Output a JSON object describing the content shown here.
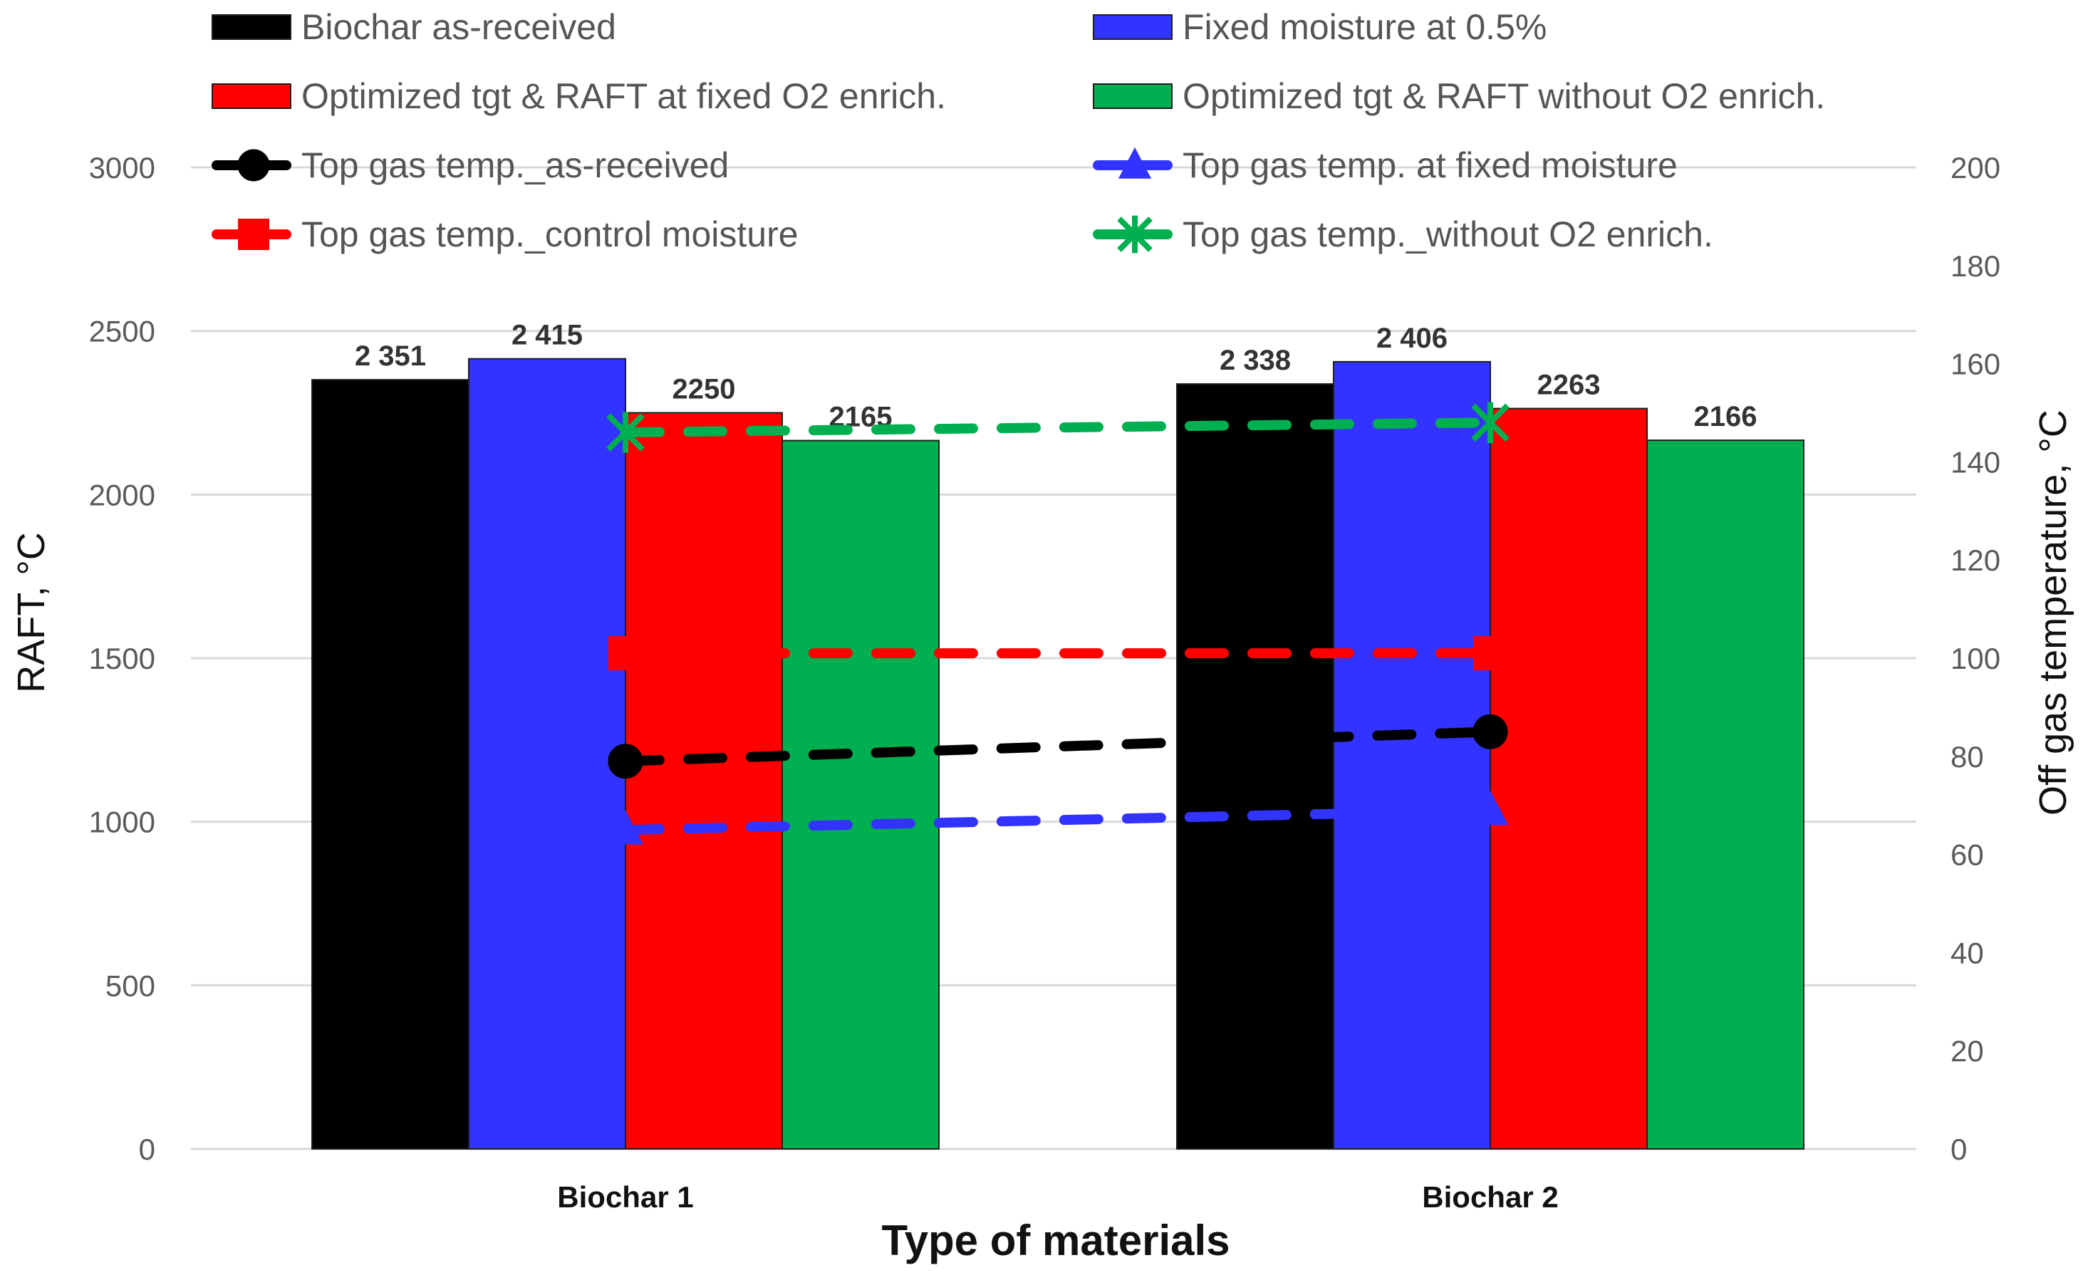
{
  "chart_data": {
    "type": "bar",
    "title": "",
    "xlabel": "Type of materials",
    "ylabel": "RAFT, °C",
    "y2label": "Off gas temperature, °C",
    "ylim": [
      0,
      3000
    ],
    "y2lim": [
      0,
      200
    ],
    "yticks": [
      "0",
      "500",
      "1000",
      "1500",
      "2000",
      "2500",
      "3000"
    ],
    "y2ticks": [
      "0",
      "20",
      "40",
      "60",
      "80",
      "100",
      "120",
      "140",
      "160",
      "180",
      "200"
    ],
    "categories": [
      "Biochar 1",
      "Biochar 2"
    ],
    "grid": true,
    "legend_position": "top",
    "series": [
      {
        "name": "Biochar as-received",
        "color": "#000000",
        "values": [
          2351,
          2338
        ],
        "labels": [
          "2 351",
          "2 338"
        ]
      },
      {
        "name": "Fixed moisture at 0.5%",
        "color": "#3333ff",
        "values": [
          2415,
          2406
        ],
        "labels": [
          "2 415",
          "2 406"
        ]
      },
      {
        "name": "Optimized tgt & RAFT at fixed O2 enrich.",
        "color": "#ff0000",
        "values": [
          2250,
          2263
        ],
        "labels": [
          "2250",
          "2263"
        ]
      },
      {
        "name": "Optimized tgt & RAFT without O2 enrich.",
        "color": "#00b050",
        "values": [
          2165,
          2166
        ],
        "labels": [
          "2165",
          "2166"
        ]
      }
    ],
    "line_series": [
      {
        "name": "Top gas temp._as-received",
        "color": "#000000",
        "marker": "circle",
        "values": [
          79,
          85
        ]
      },
      {
        "name": "Top gas temp. at fixed moisture",
        "color": "#3333ff",
        "marker": "triangle",
        "values": [
          65,
          69
        ]
      },
      {
        "name": "Top gas temp._control moisture",
        "color": "#ff0000",
        "marker": "square",
        "values": [
          101,
          101
        ]
      },
      {
        "name": "Top gas temp._without O2 enrich.",
        "color": "#00b050",
        "marker": "star",
        "values": [
          146,
          148
        ]
      }
    ],
    "legend_order": [
      "Biochar as-received",
      "Fixed moisture at 0.5%",
      "Optimized tgt & RAFT at fixed O2 enrich.",
      "Optimized tgt & RAFT without O2 enrich.",
      "Top gas temp._as-received",
      "Top gas temp. at fixed moisture",
      "Top gas temp._control moisture",
      "Top gas temp._without O2 enrich."
    ]
  }
}
